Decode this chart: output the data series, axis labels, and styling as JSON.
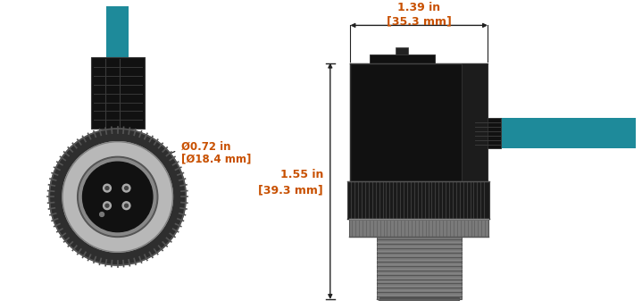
{
  "bg_color": "#ffffff",
  "cable_color": "#1e8a9a",
  "black_color": "#111111",
  "dark_gray": "#2d2d2d",
  "gray_color": "#888888",
  "light_gray": "#b8b8b8",
  "silver": "#9a9a9a",
  "knurl_black": "#1a1a1a",
  "dim_line_color": "#222222",
  "annotation_color": "#c85000",
  "label_diameter_line1": "Ø0.72 in",
  "label_diameter_line2": "[Ø18.4 mm]",
  "label_length_line1": "1.55 in",
  "label_length_line2": "[39.3 mm]",
  "label_width_line1": "1.39 in",
  "label_width_line2": "[35.3 mm]",
  "fig_width": 7.19,
  "fig_height": 3.37,
  "dpi": 100
}
